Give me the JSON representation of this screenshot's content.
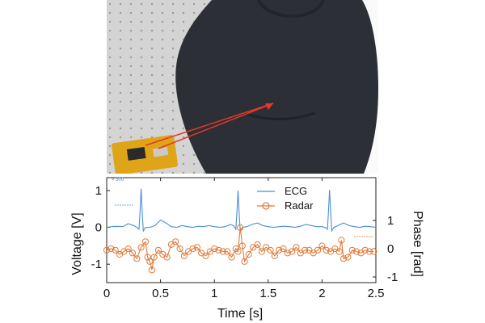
{
  "photo": {
    "description_icons": [
      "radar-board",
      "laser-arrows",
      "person-torso",
      "optical-table"
    ],
    "colors": {
      "table": "#d9d9d9",
      "shirt": "#2b2e33",
      "wall": "#f2f2f2",
      "radar": "#e0a418",
      "arrow": "#e3392b"
    }
  },
  "chart_data": {
    "type": "line",
    "xlabel": "Time [s]",
    "ylabel_left": "Voltage [V]",
    "ylabel_right": "Phase [rad]",
    "x_ticks": [
      "0",
      "0.5",
      "1",
      "1.5",
      "2",
      "2.5"
    ],
    "x_tick_values": [
      0,
      0.5,
      1,
      1.5,
      2,
      2.5
    ],
    "y_left_ticks": [
      "1",
      "0",
      "-1"
    ],
    "y_left_tick_values": [
      1,
      0,
      -1
    ],
    "y_right_ticks": [
      "1",
      "0",
      "-1"
    ],
    "y_right_tick_values": [
      1,
      0,
      -1
    ],
    "xlim": [
      0,
      2.5
    ],
    "ylim_left": [
      -1.5,
      1.35
    ],
    "scale_note": "× 500",
    "legend": {
      "position": "top-center",
      "entries": [
        "ECG",
        "Radar"
      ]
    },
    "colors": {
      "ECG": "#4a8fd6",
      "Radar": "#e07b39"
    },
    "series": [
      {
        "name": "ECG",
        "axis": "left",
        "marker": "none",
        "x": [
          0,
          0.05,
          0.1,
          0.15,
          0.2,
          0.25,
          0.28,
          0.3,
          0.31,
          0.32,
          0.33,
          0.34,
          0.36,
          0.4,
          0.45,
          0.5,
          0.55,
          0.6,
          0.65,
          0.7,
          0.75,
          0.8,
          0.85,
          0.9,
          0.95,
          1.0,
          1.05,
          1.1,
          1.15,
          1.18,
          1.2,
          1.21,
          1.22,
          1.23,
          1.24,
          1.26,
          1.3,
          1.35,
          1.4,
          1.45,
          1.5,
          1.55,
          1.6,
          1.65,
          1.7,
          1.75,
          1.8,
          1.85,
          1.9,
          1.95,
          2.0,
          2.03,
          2.05,
          2.06,
          2.07,
          2.08,
          2.09,
          2.11,
          2.15,
          2.2,
          2.25,
          2.3,
          2.35,
          2.4,
          2.45,
          2.5
        ],
        "y": [
          0.0,
          0.02,
          0.03,
          0.02,
          0.1,
          0.05,
          0.0,
          -0.05,
          0.45,
          1.05,
          0.4,
          -0.1,
          0.0,
          0.0,
          0.05,
          0.2,
          0.12,
          0.02,
          0.0,
          0.05,
          0.02,
          0.0,
          0.03,
          0.02,
          0.05,
          0.02,
          0.0,
          0.02,
          0.08,
          0.04,
          -0.05,
          0.45,
          1.0,
          0.4,
          -0.1,
          0.0,
          0.02,
          0.08,
          0.12,
          0.05,
          0.02,
          0.0,
          0.02,
          0.03,
          0.02,
          0.0,
          0.03,
          0.08,
          0.05,
          0.02,
          0.02,
          0.0,
          -0.05,
          0.45,
          1.02,
          0.4,
          -0.1,
          0.0,
          0.05,
          0.12,
          0.05,
          0.02,
          0.0,
          0.03,
          0.02,
          0.0
        ]
      },
      {
        "name": "Radar",
        "axis": "right",
        "marker": "circle",
        "x": [
          0.0,
          0.04,
          0.08,
          0.12,
          0.16,
          0.2,
          0.24,
          0.28,
          0.32,
          0.36,
          0.38,
          0.4,
          0.42,
          0.44,
          0.48,
          0.52,
          0.56,
          0.6,
          0.64,
          0.68,
          0.72,
          0.76,
          0.8,
          0.84,
          0.88,
          0.92,
          0.96,
          1.0,
          1.04,
          1.08,
          1.12,
          1.16,
          1.2,
          1.22,
          1.24,
          1.26,
          1.28,
          1.32,
          1.36,
          1.4,
          1.44,
          1.48,
          1.52,
          1.56,
          1.6,
          1.64,
          1.68,
          1.72,
          1.76,
          1.8,
          1.84,
          1.88,
          1.92,
          1.96,
          2.0,
          2.04,
          2.08,
          2.12,
          2.16,
          2.18,
          2.2,
          2.24,
          2.28,
          2.32,
          2.36,
          2.4,
          2.44,
          2.48
        ],
        "y": [
          -0.05,
          0.0,
          -0.05,
          -0.2,
          -0.1,
          0.0,
          -0.15,
          -0.35,
          0.05,
          0.25,
          -0.3,
          -0.45,
          -0.75,
          -0.3,
          -0.05,
          -0.2,
          -0.3,
          0.15,
          0.25,
          0.0,
          -0.25,
          -0.1,
          0.0,
          0.05,
          -0.15,
          -0.25,
          -0.1,
          0.0,
          -0.05,
          -0.1,
          -0.1,
          -0.3,
          0.0,
          -0.1,
          0.75,
          0.1,
          -0.45,
          -0.2,
          0.05,
          0.15,
          -0.1,
          0.05,
          -0.05,
          -0.25,
          -0.05,
          0.0,
          -0.15,
          -0.1,
          0.05,
          -0.15,
          -0.05,
          -0.05,
          -0.15,
          -0.05,
          0.1,
          -0.05,
          -0.1,
          0.0,
          -0.1,
          0.3,
          -0.35,
          -0.3,
          -0.05,
          -0.1,
          -0.15,
          -0.05,
          -0.1,
          -0.1
        ]
      }
    ]
  }
}
